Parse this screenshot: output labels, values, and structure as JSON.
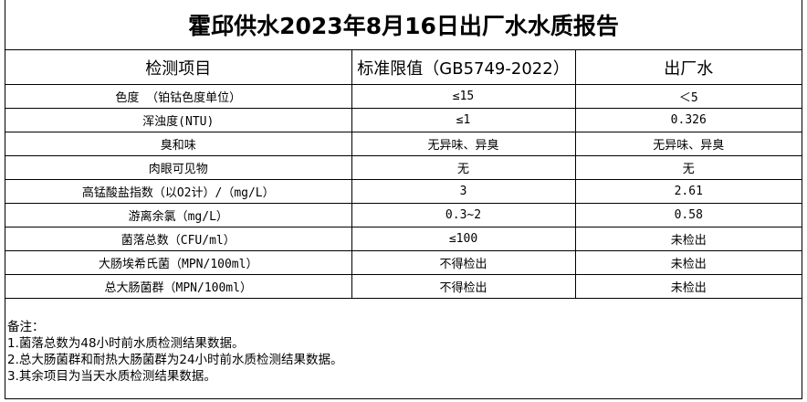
{
  "title": "霍邱供水2023年8月16日出厂水水质报告",
  "headers": [
    "检测项目",
    "标准限值（GB5749-2022）",
    "出厂水"
  ],
  "rows": [
    [
      "色度 （铂钴色度单位）",
      "≤15",
      "＜5"
    ],
    [
      "浑浊度(NTU)",
      "≤1",
      "0.326"
    ],
    [
      "臭和味",
      "无异味、异臭",
      "无异味、异臭"
    ],
    [
      "肉眼可见物",
      "无",
      "无"
    ],
    [
      "高锰酸盐指数（以O2计）/（mg/L）",
      "3",
      "2.61"
    ],
    [
      "游离余氯（mg/L）",
      "0.3~2",
      "0.58"
    ],
    [
      "菌落总数（CFU/ml）",
      "≤100",
      "未检出"
    ],
    [
      "大肠埃希氏菌（MPN/100ml）",
      "不得检出",
      "未检出"
    ],
    [
      "总大肠菌群（MPN/100ml）",
      "不得检出",
      "未检出"
    ]
  ],
  "notes": {
    "label": "备注：",
    "items": [
      "1.菌落总数为48小时前水质检测结果数据。",
      "2.总大肠菌群和耐热大肠菌群为24小时前水质检测结果数据。",
      "3.其余项目为当天水质检测结果数据。"
    ]
  }
}
